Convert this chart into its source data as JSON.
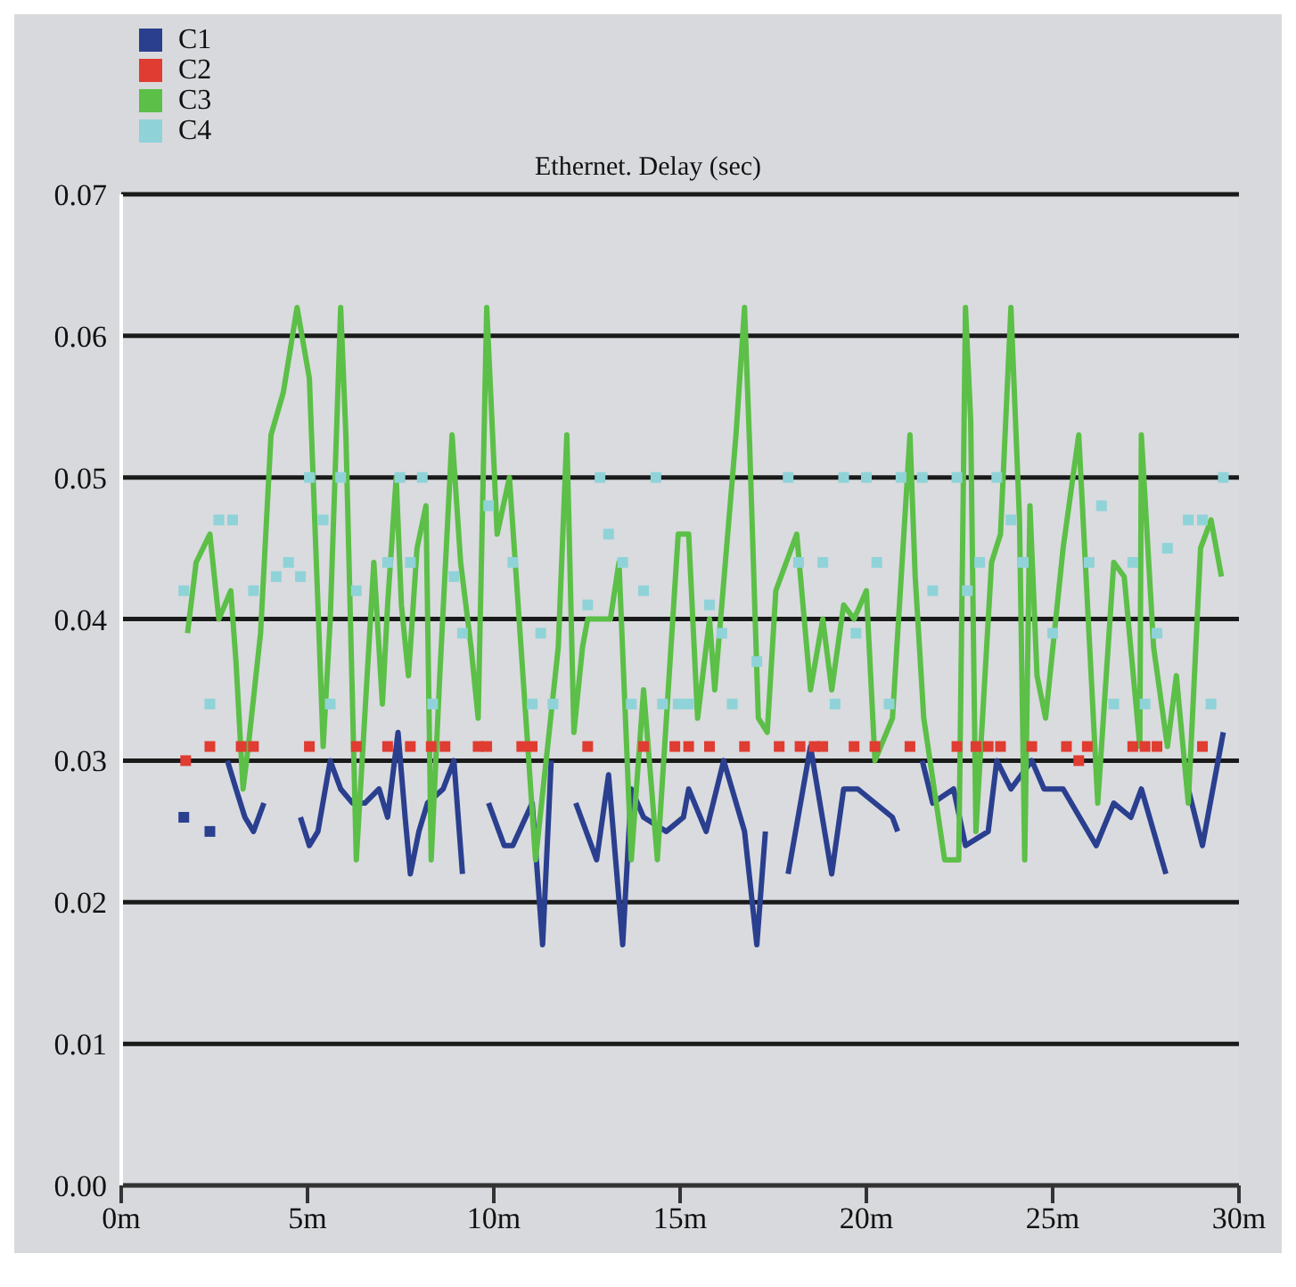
{
  "chart_data": {
    "type": "line",
    "title": "Ethernet. Delay (sec)",
    "legend": "top left",
    "grid": "y",
    "xlim": [
      0,
      30
    ],
    "xticks": [
      {
        "value": 0,
        "label": "0m"
      },
      {
        "value": 5,
        "label": "5m"
      },
      {
        "value": 10,
        "label": "10m"
      },
      {
        "value": 15,
        "label": "15m"
      },
      {
        "value": 20,
        "label": "20m"
      },
      {
        "value": 25,
        "label": "25m"
      },
      {
        "value": 30,
        "label": "30m"
      }
    ],
    "ylim": [
      0,
      0.07
    ],
    "yticks": [
      {
        "value": 0,
        "label": "0.00"
      },
      {
        "value": 0.01,
        "label": "0.01"
      },
      {
        "value": 0.02,
        "label": "0.02"
      },
      {
        "value": 0.03,
        "label": "0.03"
      },
      {
        "value": 0.04,
        "label": "0.04"
      },
      {
        "value": 0.05,
        "label": "0.05"
      },
      {
        "value": 0.06,
        "label": "0.06"
      },
      {
        "value": 0.07,
        "label": "0.07"
      }
    ],
    "series": [
      {
        "name": "C1",
        "color": "#2b3f8f",
        "marker": "none",
        "x": [
          1.68,
          1.75,
          2.38,
          2.6,
          2.85,
          3.08,
          3.32,
          3.55,
          3.83,
          4.3,
          4.81,
          5.05,
          5.28,
          5.61,
          5.89,
          6.21,
          6.54,
          6.92,
          7.15,
          7.43,
          7.62,
          7.76,
          7.99,
          8.22,
          8.64,
          8.93,
          9.16,
          9.5,
          9.86,
          10.28,
          10.51,
          11.03,
          11.31,
          11.54,
          11.9,
          12.2,
          12.76,
          13.08,
          13.46,
          13.69,
          14.02,
          14.63,
          15.09,
          15.23,
          15.7,
          16.17,
          16.73,
          17.06,
          17.29,
          17.6,
          17.9,
          18.5,
          19.07,
          19.39,
          19.77,
          20.7,
          20.84,
          21.2,
          21.5,
          21.78,
          22.34,
          22.66,
          23.27,
          23.5,
          23.88,
          24.44,
          24.77,
          25.28,
          26.17,
          26.64,
          27.1,
          27.38,
          28.04,
          28.3,
          28.64,
          29.02,
          29.58
        ],
        "values": [
          0.026,
          null,
          0.025,
          null,
          0.03,
          0.028,
          0.026,
          0.025,
          0.027,
          null,
          0.026,
          0.024,
          0.025,
          0.03,
          0.028,
          0.027,
          0.027,
          0.028,
          0.026,
          0.032,
          0.026,
          0.022,
          0.025,
          0.027,
          0.028,
          0.03,
          0.022,
          null,
          0.027,
          0.024,
          0.024,
          0.027,
          0.017,
          0.03,
          null,
          0.027,
          0.023,
          0.029,
          0.017,
          0.028,
          0.026,
          0.025,
          0.026,
          0.028,
          0.025,
          0.03,
          0.025,
          0.017,
          0.025,
          null,
          0.022,
          0.031,
          0.022,
          0.028,
          0.028,
          0.026,
          0.025,
          null,
          0.03,
          0.027,
          0.028,
          0.024,
          0.025,
          0.03,
          0.028,
          0.03,
          0.028,
          0.028,
          0.024,
          0.027,
          0.026,
          0.028,
          0.022,
          null,
          0.028,
          0.024,
          0.032
        ]
      },
      {
        "name": "C2",
        "type": "scatter",
        "color": "#e03c31",
        "marker": "square",
        "x": [
          1.73,
          2.38,
          3.22,
          3.55,
          5.05,
          6.31,
          7.15,
          7.76,
          8.32,
          8.69,
          9.58,
          9.81,
          10.75,
          11.03,
          12.52,
          14.02,
          14.86,
          15.23,
          15.79,
          16.73,
          17.66,
          18.22,
          18.6,
          18.83,
          19.67,
          20.23,
          21.17,
          22.43,
          22.94,
          23.27,
          23.6,
          24.44,
          25.37,
          25.7,
          25.93,
          27.15,
          27.48,
          27.8,
          29.02
        ],
        "values": [
          0.03,
          0.031,
          0.031,
          0.031,
          0.031,
          0.031,
          0.031,
          0.031,
          0.031,
          0.031,
          0.031,
          0.031,
          0.031,
          0.031,
          0.031,
          0.031,
          0.031,
          0.031,
          0.031,
          0.031,
          0.031,
          0.031,
          0.031,
          0.031,
          0.031,
          0.031,
          0.031,
          0.031,
          0.031,
          0.031,
          0.031,
          0.031,
          0.031,
          0.03,
          0.031,
          0.031,
          0.031,
          0.031,
          0.031
        ]
      },
      {
        "name": "C3",
        "color": "#5cbf47",
        "marker": "none",
        "x": [
          1.78,
          2.01,
          2.38,
          2.62,
          2.94,
          3.08,
          3.27,
          3.41,
          3.74,
          4.02,
          4.35,
          4.72,
          5.05,
          5.28,
          5.42,
          5.61,
          5.89,
          6.03,
          6.31,
          6.78,
          7.01,
          7.15,
          7.38,
          7.52,
          7.71,
          7.94,
          8.18,
          8.32,
          8.55,
          8.88,
          9.11,
          9.39,
          9.58,
          9.81,
          9.95,
          10.09,
          10.42,
          11.12,
          11.73,
          11.96,
          12.15,
          12.38,
          12.52,
          13.13,
          13.36,
          13.69,
          14.02,
          14.39,
          14.95,
          15.23,
          15.47,
          15.79,
          15.93,
          16.5,
          16.73,
          16.87,
          17.1,
          17.34,
          17.57,
          18.13,
          18.5,
          18.83,
          19.07,
          19.39,
          19.67,
          20.0,
          20.23,
          20.7,
          21.17,
          21.31,
          21.54,
          22.1,
          22.48,
          22.66,
          22.8,
          22.94,
          23.36,
          23.6,
          23.88,
          24.11,
          24.25,
          24.39,
          24.58,
          24.81,
          25.28,
          25.7,
          26.21,
          26.64,
          26.92,
          27.34,
          27.38,
          27.71,
          28.08,
          28.32,
          28.64,
          28.97,
          29.25,
          29.53
        ],
        "values": [
          0.039,
          0.044,
          0.046,
          0.04,
          0.042,
          0.037,
          0.028,
          0.031,
          0.039,
          0.053,
          0.056,
          0.062,
          0.057,
          0.041,
          0.031,
          0.04,
          0.062,
          0.053,
          0.023,
          0.044,
          0.034,
          0.041,
          0.05,
          0.041,
          0.036,
          0.045,
          0.048,
          0.023,
          0.036,
          0.053,
          0.044,
          0.038,
          0.033,
          0.062,
          0.054,
          0.046,
          0.05,
          0.023,
          0.038,
          0.053,
          0.032,
          0.038,
          0.04,
          0.04,
          0.044,
          0.023,
          0.035,
          0.023,
          0.046,
          0.046,
          0.033,
          0.04,
          0.035,
          0.053,
          0.062,
          0.052,
          0.033,
          0.032,
          0.042,
          0.046,
          0.035,
          0.04,
          0.035,
          0.041,
          0.04,
          0.042,
          0.03,
          0.033,
          0.053,
          0.043,
          0.033,
          0.023,
          0.023,
          0.062,
          0.054,
          0.025,
          0.044,
          0.046,
          0.062,
          0.047,
          0.023,
          0.048,
          0.036,
          0.033,
          0.045,
          0.053,
          0.027,
          0.044,
          0.043,
          0.031,
          0.053,
          0.038,
          0.031,
          0.036,
          0.027,
          0.045,
          0.047,
          0.043
        ]
      },
      {
        "name": "C4",
        "type": "scatter",
        "color": "#8fd3d8",
        "marker": "square",
        "x": [
          1.68,
          2.38,
          2.62,
          2.99,
          3.55,
          4.16,
          4.49,
          4.81,
          5.05,
          5.42,
          5.61,
          5.89,
          6.31,
          7.15,
          7.48,
          7.76,
          8.08,
          8.36,
          8.93,
          9.16,
          9.86,
          10.51,
          11.03,
          11.26,
          11.59,
          12.52,
          12.85,
          13.08,
          13.46,
          13.69,
          14.02,
          14.35,
          14.53,
          14.95,
          15.23,
          15.79,
          16.12,
          16.4,
          17.06,
          17.9,
          18.18,
          18.83,
          19.16,
          19.39,
          19.72,
          20.0,
          20.28,
          20.61,
          20.93,
          21.5,
          21.78,
          22.43,
          22.71,
          23.04,
          23.5,
          23.88,
          24.21,
          25.0,
          25.98,
          26.31,
          26.64,
          27.15,
          27.48,
          27.8,
          28.08,
          28.64,
          29.02,
          29.25,
          29.58
        ],
        "values": [
          0.042,
          0.034,
          0.047,
          0.047,
          0.042,
          0.043,
          0.044,
          0.043,
          0.05,
          0.047,
          0.034,
          0.05,
          0.042,
          0.044,
          0.05,
          0.044,
          0.05,
          0.034,
          0.043,
          0.039,
          0.048,
          0.044,
          0.034,
          0.039,
          0.034,
          0.041,
          0.05,
          0.046,
          0.044,
          0.034,
          0.042,
          0.05,
          0.034,
          0.034,
          0.034,
          0.041,
          0.039,
          0.034,
          0.037,
          0.05,
          0.044,
          0.044,
          0.034,
          0.05,
          0.039,
          0.05,
          0.044,
          0.034,
          0.05,
          0.05,
          0.042,
          0.05,
          0.042,
          0.044,
          0.05,
          0.047,
          0.044,
          0.039,
          0.044,
          0.048,
          0.034,
          0.044,
          0.034,
          0.039,
          0.045,
          0.047,
          0.047,
          0.034,
          0.05
        ]
      }
    ]
  }
}
